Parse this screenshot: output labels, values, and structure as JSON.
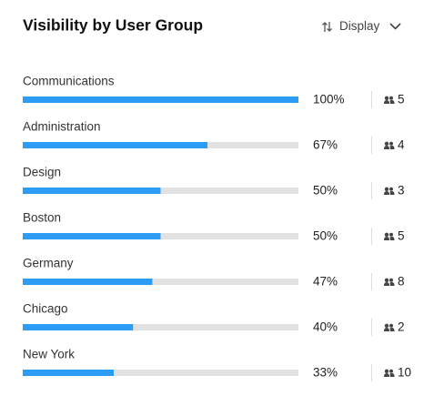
{
  "header": {
    "title": "Visibility by User Group",
    "control": "Display"
  },
  "groups": [
    {
      "name": "Communications",
      "percent": 100,
      "percent_label": "100%",
      "members": 5
    },
    {
      "name": "Administration",
      "percent": 67,
      "percent_label": "67%",
      "members": 4
    },
    {
      "name": "Design",
      "percent": 50,
      "percent_label": "50%",
      "members": 3
    },
    {
      "name": "Boston",
      "percent": 50,
      "percent_label": "50%",
      "members": 5
    },
    {
      "name": "Germany",
      "percent": 47,
      "percent_label": "47%",
      "members": 8
    },
    {
      "name": "Chicago",
      "percent": 40,
      "percent_label": "40%",
      "members": 2
    },
    {
      "name": "New York",
      "percent": 33,
      "percent_label": "33%",
      "members": 10
    }
  ]
}
